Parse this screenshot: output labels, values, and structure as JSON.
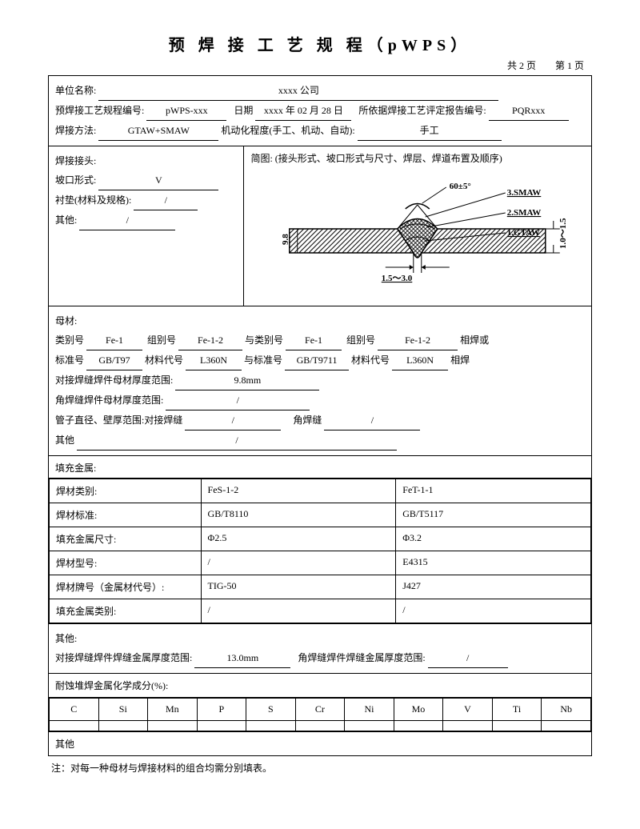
{
  "title": "预 焊 接 工 艺 规 程（pWPS）",
  "page_info": "共 2 页　　第 1 页",
  "header": {
    "company_label": "单位名称:",
    "company_value": "xxxx 公司",
    "pwps_no_label": "预焊接工艺规程编号:",
    "pwps_no_value": "pWPS-xxx",
    "date_label": "日期",
    "date_value": "xxxx 年 02 月 28 日",
    "pqr_label": "所依据焊接工艺评定报告编号:",
    "pqr_value": "PQRxxx",
    "method_label": "焊接方法:",
    "method_value": "GTAW+SMAW",
    "auto_label": "机动化程度(手工、机动、自动):",
    "auto_value": "手工"
  },
  "joint": {
    "section_label": "焊接接头:",
    "groove_label": "坡口形式:",
    "groove_value": "V",
    "backing_label": "衬垫(材料及规格):",
    "backing_value": "/",
    "other_label": "其他:",
    "other_value": "/",
    "diagram_label": "简图: (接头形式、坡口形式与尺寸、焊层、焊道布置及顺序)",
    "diagram": {
      "angle": "60±5°",
      "pass3": "3.SMAW",
      "pass2": "2.SMAW",
      "pass1": "1.GTAW",
      "thickness": "9.8",
      "root_gap": "1.5～3.0",
      "root_face": "1.0～1.5"
    }
  },
  "base": {
    "section_label": "母材:",
    "cat_label": "类别号",
    "cat1": "Fe-1",
    "group_label": "组别号",
    "group1": "Fe-1-2",
    "with_cat_label": "与类别号",
    "cat2": "Fe-1",
    "group2": "Fe-1-2",
    "weld_or": "相焊或",
    "std_label": "标准号",
    "std1": "GB/T97",
    "mat_label": "材料代号",
    "mat1": "L360N",
    "with_std_label": "与标准号",
    "std2": "GB/T9711",
    "mat2": "L360N",
    "weld": "相焊",
    "butt_thick_label": "对接焊缝焊件母材厚度范围:",
    "butt_thick_value": "9.8mm",
    "fillet_thick_label": "角焊缝焊件母材厚度范围:",
    "fillet_thick_value": "/",
    "pipe_label": "管子直径、壁厚范围:对接焊缝",
    "pipe_butt": "/",
    "pipe_fillet_label": "角焊缝",
    "pipe_fillet": "/",
    "other_label": "其他",
    "other_value": "/"
  },
  "filler": {
    "section_label": "填充金属:",
    "rows": {
      "cat_label": "焊材类别:",
      "cat_a": "FeS-1-2",
      "cat_b": "FeT-1-1",
      "std_label": "焊材标准:",
      "std_a": "GB/T8110",
      "std_b": "GB/T5117",
      "size_label": "填充金属尺寸:",
      "size_a": "Φ2.5",
      "size_b": "Φ3.2",
      "model_label": "焊材型号:",
      "model_a": "/",
      "model_b": "E4315",
      "brand_label": "焊材牌号（金属材代号）:",
      "brand_a": "TIG-50",
      "brand_b": "J427",
      "fcat_label": "填充金属类别:",
      "fcat_a": "/",
      "fcat_b": "/"
    },
    "other_label": "其他:",
    "butt_range_label": "对接焊缝焊件焊缝金属厚度范围:",
    "butt_range_value": "13.0mm",
    "fillet_range_label": "角焊缝焊件焊缝金属厚度范围:",
    "fillet_range_value": "/",
    "chem_label": "耐蚀堆焊金属化学成分(%):",
    "chem_cols": [
      "C",
      "Si",
      "Mn",
      "P",
      "S",
      "Cr",
      "Ni",
      "Mo",
      "V",
      "Ti",
      "Nb"
    ],
    "final_other": "其他"
  },
  "note": "注：对每一种母材与焊接材料的组合均需分别填表。"
}
